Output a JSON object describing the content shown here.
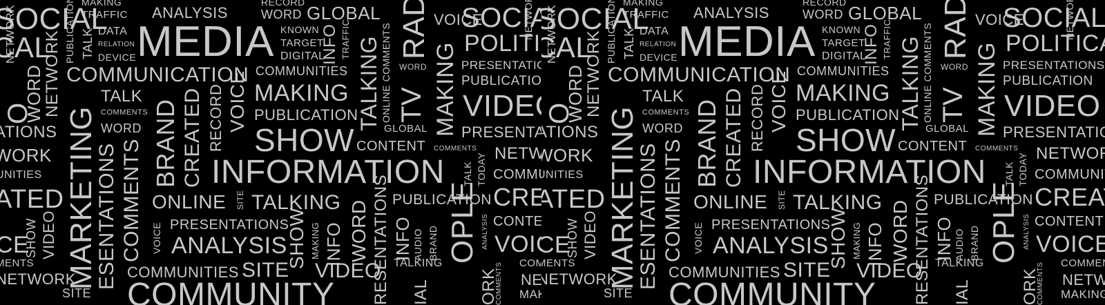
{
  "palette": {
    "background": "#000000",
    "text": "#c8c8c8"
  },
  "tile_count": 2,
  "words": {
    "social": "SOCIAL",
    "cal": "CAL",
    "making": "MAKING",
    "traffic": "TRAFFIC",
    "analysis": "ANALYSIS",
    "record": "RECORD",
    "word": "WORD",
    "global": "GLOBAL",
    "voice": "VOICE",
    "data": "DATA",
    "relation": "RELATION",
    "device": "DEVICE",
    "publication": "PUBLICATION",
    "talk": "TALK",
    "media": "MEDIA",
    "known": "KNOWN",
    "target": "TARGET",
    "digital": "DIGITAL",
    "info": "INFO",
    "online_comments": "ONLINE COMMENTS",
    "political": "POLITICAL",
    "network": "NETWORK",
    "communication": "COMMUNICATION",
    "communities": "COMMUNITIES",
    "presentations": "PRESENTATIONS",
    "tv": "TV",
    "rad": "RAD",
    "comments": "COMMENTS",
    "video": "VIDEO",
    "marketing": "MARKETING",
    "brand": "BRAND",
    "created": "CREATED",
    "show": "SHOW",
    "talking": "TALKING",
    "content": "CONTENT",
    "information": "INFORMATION",
    "today": "TODAY",
    "online": "ONLINE",
    "site": "SITE",
    "esentations": "ESENTATIONS",
    "audio": "AUDIO",
    "ople": "OPLE",
    "community": "COMMUNITY",
    "ork": "ORK",
    "ations": "ATIONS",
    "work": "WORK",
    "unities": "UNITIES",
    "ated": "ATED",
    "ce": "CE",
    "ments": "MENTS",
    "resentations": "RESENTATIONS",
    "ial": "IAL",
    "o": "O"
  }
}
